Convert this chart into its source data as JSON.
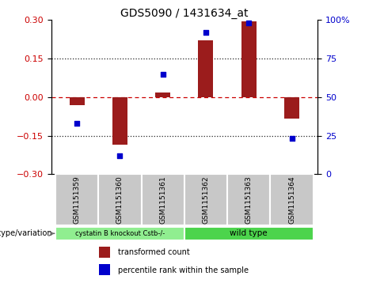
{
  "title": "GDS5090 / 1431634_at",
  "categories": [
    "GSM1151359",
    "GSM1151360",
    "GSM1151361",
    "GSM1151362",
    "GSM1151363",
    "GSM1151364"
  ],
  "bar_values": [
    -0.03,
    -0.185,
    0.018,
    0.22,
    0.295,
    -0.085
  ],
  "scatter_values": [
    33,
    12,
    65,
    92,
    98,
    23
  ],
  "ylim_left": [
    -0.3,
    0.3
  ],
  "ylim_right": [
    0,
    100
  ],
  "yticks_left": [
    -0.3,
    -0.15,
    0,
    0.15,
    0.3
  ],
  "yticks_right": [
    0,
    25,
    50,
    75,
    100
  ],
  "bar_color": "#9B1C1C",
  "scatter_color": "#0000CC",
  "zero_line_color": "#CC0000",
  "dotted_line_color": "#222222",
  "group1_label": "cystatin B knockout Cstb-/-",
  "group2_label": "wild type",
  "group1_indices": [
    0,
    1,
    2
  ],
  "group2_indices": [
    3,
    4,
    5
  ],
  "group1_color": "#90EE90",
  "group2_color": "#4CD44C",
  "genotype_label": "genotype/variation",
  "legend1_label": "transformed count",
  "legend2_label": "percentile rank within the sample",
  "left_yaxis_color": "#CC0000",
  "right_yaxis_color": "#0000CC",
  "background_color": "#FFFFFF",
  "label_bg_color": "#C8C8C8",
  "label_border_color": "#AAAAAA"
}
